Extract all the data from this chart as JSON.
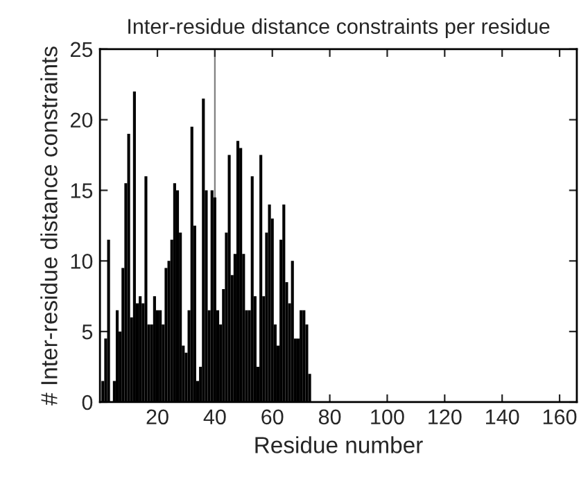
{
  "chart_data": {
    "type": "bar",
    "title": "Inter-residue distance constraints per residue",
    "xlabel": "Residue number",
    "ylabel": "# Inter-residue distance constraints",
    "x": [
      1,
      2,
      3,
      4,
      5,
      6,
      7,
      8,
      9,
      10,
      11,
      12,
      13,
      14,
      15,
      16,
      17,
      18,
      19,
      20,
      21,
      22,
      23,
      24,
      25,
      26,
      27,
      28,
      29,
      30,
      31,
      32,
      33,
      34,
      35,
      36,
      37,
      38,
      39,
      40,
      41,
      42,
      43,
      44,
      45,
      46,
      47,
      48,
      49,
      50,
      51,
      52,
      53,
      54,
      55,
      56,
      57,
      58,
      59,
      60,
      61,
      62,
      63,
      64,
      65,
      66,
      67,
      68,
      69,
      70,
      71,
      72,
      73
    ],
    "values": [
      1.5,
      4.5,
      11.5,
      0,
      1.5,
      6.5,
      5,
      9.5,
      15.5,
      19,
      6,
      22,
      7,
      7.5,
      7,
      16,
      5.5,
      5.5,
      7.5,
      6.5,
      6.5,
      5.5,
      9.5,
      10,
      11.5,
      15.5,
      15,
      12,
      4,
      3.5,
      6.5,
      19.5,
      12.5,
      1.5,
      2.5,
      21.5,
      15,
      6.5,
      15,
      14.5,
      6.5,
      5.5,
      8,
      12,
      17.5,
      9,
      10.5,
      18.5,
      18,
      10.5,
      6.5,
      6.5,
      16,
      7.5,
      2.5,
      17.5,
      7.5,
      12,
      14,
      13,
      5.5,
      4,
      11.5,
      14,
      8.5,
      7,
      10,
      4.5,
      4.5,
      6.5,
      6.5,
      5.5,
      2
    ],
    "color": "#000000",
    "xlim": [
      0,
      166
    ],
    "xticks": [
      20,
      40,
      60,
      80,
      100,
      120,
      140,
      160
    ],
    "ylim": [
      0,
      25
    ],
    "yticks": [
      0,
      5,
      10,
      15,
      20,
      25
    ],
    "ref_lines": [
      {
        "axis": "x",
        "value": 40,
        "color": "#808080"
      }
    ],
    "grid": false,
    "legend": false
  }
}
